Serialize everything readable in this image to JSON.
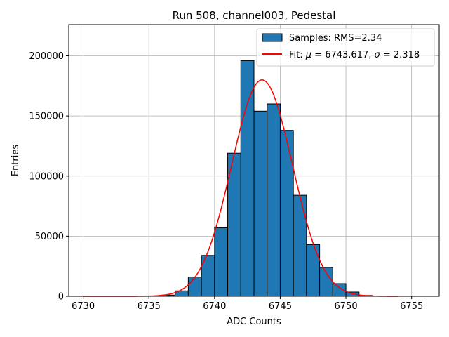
{
  "chart_data": {
    "type": "bar",
    "title": "Run 508, channel003, Pedestal",
    "xlabel": "ADC Counts",
    "ylabel": "Entries",
    "xlim": [
      6728.9,
      6757.1
    ],
    "ylim": [
      0,
      226000
    ],
    "x_ticks": [
      6730,
      6735,
      6740,
      6745,
      6750,
      6755
    ],
    "y_ticks": [
      0,
      50000,
      100000,
      150000,
      200000
    ],
    "grid": true,
    "legend_position": "top-right",
    "bin_width": 1,
    "bins": [
      {
        "left": 6736,
        "value": 1000
      },
      {
        "left": 6737,
        "value": 4500
      },
      {
        "left": 6738,
        "value": 16000
      },
      {
        "left": 6739,
        "value": 34000
      },
      {
        "left": 6740,
        "value": 57000
      },
      {
        "left": 6741,
        "value": 119000
      },
      {
        "left": 6742,
        "value": 196000
      },
      {
        "left": 6743,
        "value": 154000
      },
      {
        "left": 6744,
        "value": 160000
      },
      {
        "left": 6745,
        "value": 138000
      },
      {
        "left": 6746,
        "value": 84000
      },
      {
        "left": 6747,
        "value": 43000
      },
      {
        "left": 6748,
        "value": 24000
      },
      {
        "left": 6749,
        "value": 10500
      },
      {
        "left": 6750,
        "value": 3500
      },
      {
        "left": 6751,
        "value": 700
      }
    ],
    "histogram": {
      "label": "Samples: RMS=2.34",
      "fill_color": "#1f77b4",
      "edge_color": "#000000"
    },
    "fit": {
      "label_prefix": "Fit: ",
      "mu_symbol": "μ",
      "mu_value": " = 6743.617, ",
      "sigma_symbol": "σ",
      "sigma_value": " = 2.318",
      "mu": 6743.617,
      "sigma": 2.318,
      "peak": 180000,
      "x_range": [
        6730,
        6754
      ],
      "color": "#ff0000"
    }
  }
}
